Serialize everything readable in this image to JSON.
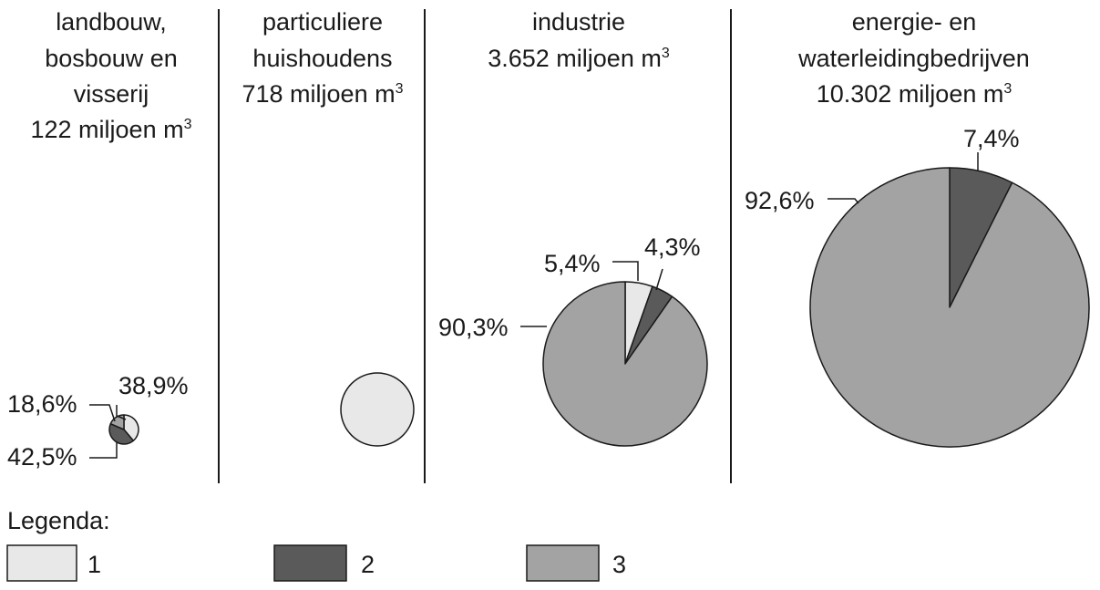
{
  "chart_data": [
    {
      "type": "pie",
      "title_lines": [
        "landbouw,",
        "bosbouw en",
        "visserij"
      ],
      "volume": "122 miljoen m",
      "volume_unit_exp": "3",
      "volume_value": 122,
      "slices": [
        {
          "category": "1",
          "value": 38.9,
          "label": "38,9%"
        },
        {
          "category": "2",
          "value": 42.5,
          "label": "42,5%"
        },
        {
          "category": "3",
          "value": 18.6,
          "label": "18,6%"
        }
      ]
    },
    {
      "type": "pie",
      "title_lines": [
        "particuliere",
        "huishoudens"
      ],
      "volume": "718 miljoen m",
      "volume_unit_exp": "3",
      "volume_value": 718,
      "slices": [
        {
          "category": "1",
          "value": 100,
          "label": ""
        }
      ]
    },
    {
      "type": "pie",
      "title_lines": [
        "industrie"
      ],
      "volume": "3.652 miljoen m",
      "volume_unit_exp": "3",
      "volume_value": 3652,
      "slices": [
        {
          "category": "1",
          "value": 5.4,
          "label": "5,4%"
        },
        {
          "category": "2",
          "value": 4.3,
          "label": "4,3%"
        },
        {
          "category": "3",
          "value": 90.3,
          "label": "90,3%"
        }
      ]
    },
    {
      "type": "pie",
      "title_lines": [
        "energie- en",
        "waterleidingbedrijven"
      ],
      "volume": "10.302 miljoen m",
      "volume_unit_exp": "3",
      "volume_value": 10302,
      "slices": [
        {
          "category": "2",
          "value": 7.4,
          "label": "7,4%"
        },
        {
          "category": "3",
          "value": 92.6,
          "label": "92,6%"
        }
      ]
    }
  ],
  "legend": {
    "title": "Legenda:",
    "items": [
      {
        "key": "1",
        "label": "1",
        "color": "#e8e8e8"
      },
      {
        "key": "2",
        "label": "2",
        "color": "#5a5a5a"
      },
      {
        "key": "3",
        "label": "3",
        "color": "#a3a3a3"
      }
    ]
  },
  "colors": {
    "outline": "#1a1a1a",
    "divider": "#1a1a1a"
  }
}
